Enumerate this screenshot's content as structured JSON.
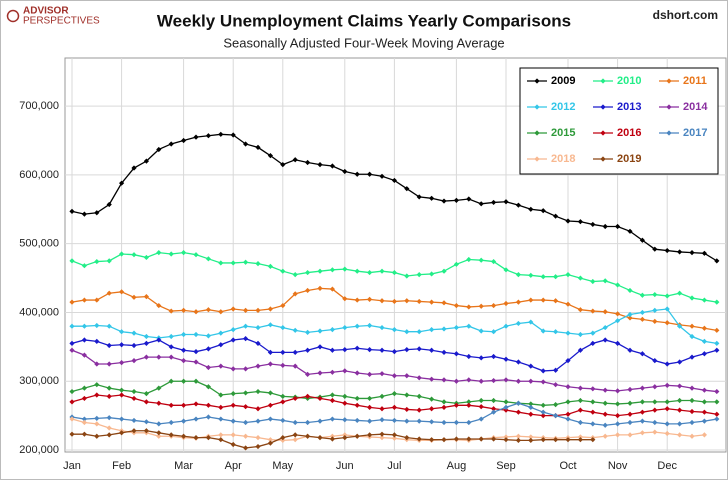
{
  "chart_data": {
    "type": "line",
    "title": "Weekly Unemployment Claims Yearly Comparisons",
    "subtitle": "Seasonally Adjusted Four-Week Moving Average",
    "logo": [
      "ADVISOR",
      "PERSPECTIVES"
    ],
    "watermark": "dshort.com",
    "categories": [
      "Jan",
      null,
      null,
      null,
      "Feb",
      null,
      null,
      null,
      null,
      "Mar",
      null,
      null,
      null,
      "Apr",
      null,
      null,
      null,
      "May",
      null,
      null,
      null,
      null,
      "Jun",
      null,
      null,
      null,
      "Jul",
      null,
      null,
      null,
      null,
      "Aug",
      null,
      null,
      null,
      "Sep",
      null,
      null,
      null,
      null,
      "Oct",
      null,
      null,
      null,
      "Nov",
      null,
      null,
      null,
      "Dec",
      null,
      null,
      null,
      null
    ],
    "ylim": [
      200000,
      770000
    ],
    "yticks": [
      {
        "value": 200000,
        "label": "200,000"
      },
      {
        "value": 300000,
        "label": "300,000"
      },
      {
        "value": 400000,
        "label": "400,000"
      },
      {
        "value": 500000,
        "label": "500,000"
      },
      {
        "value": 600000,
        "label": "600,000"
      },
      {
        "value": 700000,
        "label": "700,000"
      }
    ],
    "grid": true,
    "legend": "upper right",
    "series": [
      {
        "name": "2009",
        "color": "#000000",
        "values": [
          547000,
          543000,
          545000,
          557000,
          588000,
          610000,
          620000,
          637000,
          645000,
          650000,
          655000,
          657000,
          659000,
          658000,
          645000,
          640000,
          628000,
          615000,
          622000,
          618000,
          615000,
          613000,
          605000,
          601000,
          601000,
          598000,
          592000,
          580000,
          568000,
          566000,
          562000,
          563000,
          565000,
          558000,
          560000,
          561000,
          556000,
          550000,
          548000,
          540000,
          533000,
          532000,
          528000,
          525000,
          525000,
          518000,
          505000,
          492000,
          490000,
          488000,
          487000,
          486000,
          475000
        ]
      },
      {
        "name": "2010",
        "color": "#22ee88",
        "values": [
          475000,
          468000,
          474000,
          475000,
          485000,
          484000,
          480000,
          487000,
          485000,
          487000,
          484000,
          478000,
          472000,
          472000,
          473000,
          471000,
          467000,
          460000,
          455000,
          458000,
          460000,
          462000,
          463000,
          460000,
          458000,
          460000,
          458000,
          453000,
          455000,
          456000,
          460000,
          470000,
          477000,
          476000,
          474000,
          462000,
          455000,
          454000,
          452000,
          452000,
          455000,
          450000,
          445000,
          446000,
          440000,
          432000,
          425000,
          426000,
          424000,
          428000,
          421000,
          418000,
          415000
        ]
      },
      {
        "name": "2011",
        "color": "#e8751a",
        "values": [
          415000,
          418000,
          418000,
          428000,
          430000,
          422000,
          423000,
          410000,
          402000,
          403000,
          401000,
          404000,
          401000,
          405000,
          403000,
          403000,
          405000,
          410000,
          427000,
          432000,
          435000,
          434000,
          420000,
          418000,
          419000,
          417000,
          416000,
          417000,
          416000,
          415000,
          414000,
          410000,
          408000,
          409000,
          410000,
          413000,
          415000,
          418000,
          418000,
          417000,
          412000,
          404000,
          402000,
          401000,
          398000,
          392000,
          390000,
          387000,
          385000,
          382000,
          380000,
          377000,
          374000
        ]
      },
      {
        "name": "2012",
        "color": "#33c6e8",
        "values": [
          380000,
          380000,
          381000,
          380000,
          372000,
          370000,
          365000,
          363000,
          365000,
          368000,
          368000,
          366000,
          370000,
          375000,
          380000,
          378000,
          382000,
          378000,
          374000,
          371000,
          373000,
          375000,
          378000,
          380000,
          381000,
          378000,
          375000,
          372000,
          372000,
          375000,
          376000,
          378000,
          380000,
          373000,
          372000,
          380000,
          384000,
          386000,
          373000,
          372000,
          370000,
          368000,
          370000,
          378000,
          388000,
          397000,
          400000,
          403000,
          405000,
          380000,
          365000,
          358000,
          355000
        ]
      },
      {
        "name": "2013",
        "color": "#1a1acc",
        "values": [
          355000,
          360000,
          358000,
          352000,
          353000,
          352000,
          355000,
          360000,
          350000,
          345000,
          343000,
          347000,
          353000,
          360000,
          362000,
          355000,
          342000,
          342000,
          342000,
          345000,
          350000,
          345000,
          346000,
          348000,
          346000,
          345000,
          343000,
          346000,
          347000,
          345000,
          342000,
          340000,
          336000,
          334000,
          336000,
          332000,
          328000,
          322000,
          315000,
          316000,
          330000,
          345000,
          355000,
          360000,
          355000,
          345000,
          340000,
          330000,
          325000,
          328000,
          335000,
          340000,
          345000
        ]
      },
      {
        "name": "2014",
        "color": "#8a2fa0",
        "values": [
          345000,
          338000,
          325000,
          325000,
          327000,
          330000,
          335000,
          335000,
          335000,
          330000,
          328000,
          320000,
          322000,
          318000,
          318000,
          322000,
          325000,
          323000,
          322000,
          310000,
          312000,
          313000,
          315000,
          312000,
          310000,
          311000,
          308000,
          308000,
          305000,
          303000,
          302000,
          300000,
          302000,
          300000,
          301000,
          302000,
          300000,
          300000,
          299000,
          295000,
          292000,
          290000,
          289000,
          287000,
          286000,
          288000,
          290000,
          292000,
          294000,
          293000,
          290000,
          287000,
          285000
        ]
      },
      {
        "name": "2015",
        "color": "#2e9a3a",
        "values": [
          285000,
          290000,
          295000,
          290000,
          287000,
          285000,
          282000,
          290000,
          300000,
          300000,
          300000,
          292000,
          280000,
          282000,
          283000,
          285000,
          283000,
          278000,
          277000,
          275000,
          277000,
          280000,
          278000,
          275000,
          275000,
          278000,
          282000,
          280000,
          278000,
          274000,
          270000,
          268000,
          270000,
          272000,
          272000,
          270000,
          268000,
          267000,
          265000,
          266000,
          270000,
          272000,
          270000,
          268000,
          267000,
          268000,
          270000,
          270000,
          270000,
          272000,
          272000,
          270000,
          270000
        ]
      },
      {
        "name": "2016",
        "color": "#c00010",
        "values": [
          270000,
          275000,
          280000,
          278000,
          280000,
          275000,
          270000,
          268000,
          265000,
          265000,
          267000,
          265000,
          262000,
          265000,
          263000,
          260000,
          265000,
          270000,
          275000,
          278000,
          275000,
          272000,
          268000,
          265000,
          262000,
          260000,
          262000,
          259000,
          258000,
          260000,
          262000,
          265000,
          265000,
          263000,
          260000,
          258000,
          255000,
          252000,
          250000,
          250000,
          252000,
          258000,
          255000,
          252000,
          250000,
          252000,
          255000,
          258000,
          260000,
          258000,
          256000,
          255000,
          252000
        ]
      },
      {
        "name": "2017",
        "color": "#4a85c0",
        "values": [
          248000,
          245000,
          246000,
          247000,
          245000,
          243000,
          241000,
          238000,
          240000,
          242000,
          245000,
          248000,
          245000,
          242000,
          240000,
          242000,
          245000,
          243000,
          240000,
          240000,
          242000,
          245000,
          244000,
          243000,
          242000,
          244000,
          243000,
          242000,
          242000,
          241000,
          240000,
          240000,
          240000,
          245000,
          255000,
          262000,
          268000,
          262000,
          255000,
          250000,
          245000,
          240000,
          238000,
          236000,
          238000,
          240000,
          242000,
          240000,
          238000,
          238000,
          240000,
          242000,
          245000
        ]
      },
      {
        "name": "2018",
        "color": "#f8b890",
        "values": [
          245000,
          240000,
          238000,
          232000,
          228000,
          225000,
          225000,
          220000,
          220000,
          218000,
          217000,
          220000,
          222000,
          222000,
          220000,
          218000,
          215000,
          214000,
          215000,
          220000,
          218000,
          220000,
          222000,
          220000,
          219000,
          218000,
          217000,
          215000,
          214000,
          214000,
          215000,
          215000,
          214000,
          216000,
          218000,
          219000,
          220000,
          219000,
          218000,
          217000,
          218000,
          219000,
          218000,
          220000,
          222000,
          222000,
          225000,
          226000,
          224000,
          222000,
          220000,
          222000,
          null
        ]
      },
      {
        "name": "2019",
        "color": "#8b4513",
        "values": [
          223000,
          223000,
          220000,
          222000,
          225000,
          228000,
          228000,
          225000,
          222000,
          220000,
          218000,
          218000,
          215000,
          208000,
          203000,
          205000,
          210000,
          218000,
          222000,
          220000,
          218000,
          216000,
          218000,
          220000,
          222000,
          223000,
          222000,
          218000,
          216000,
          215000,
          215000,
          216000,
          216000,
          216000,
          216000,
          215000,
          214000,
          214000,
          215000,
          215000,
          215000,
          215000,
          215000,
          null,
          null,
          null,
          null,
          null,
          null,
          null,
          null,
          null,
          null
        ]
      }
    ]
  }
}
